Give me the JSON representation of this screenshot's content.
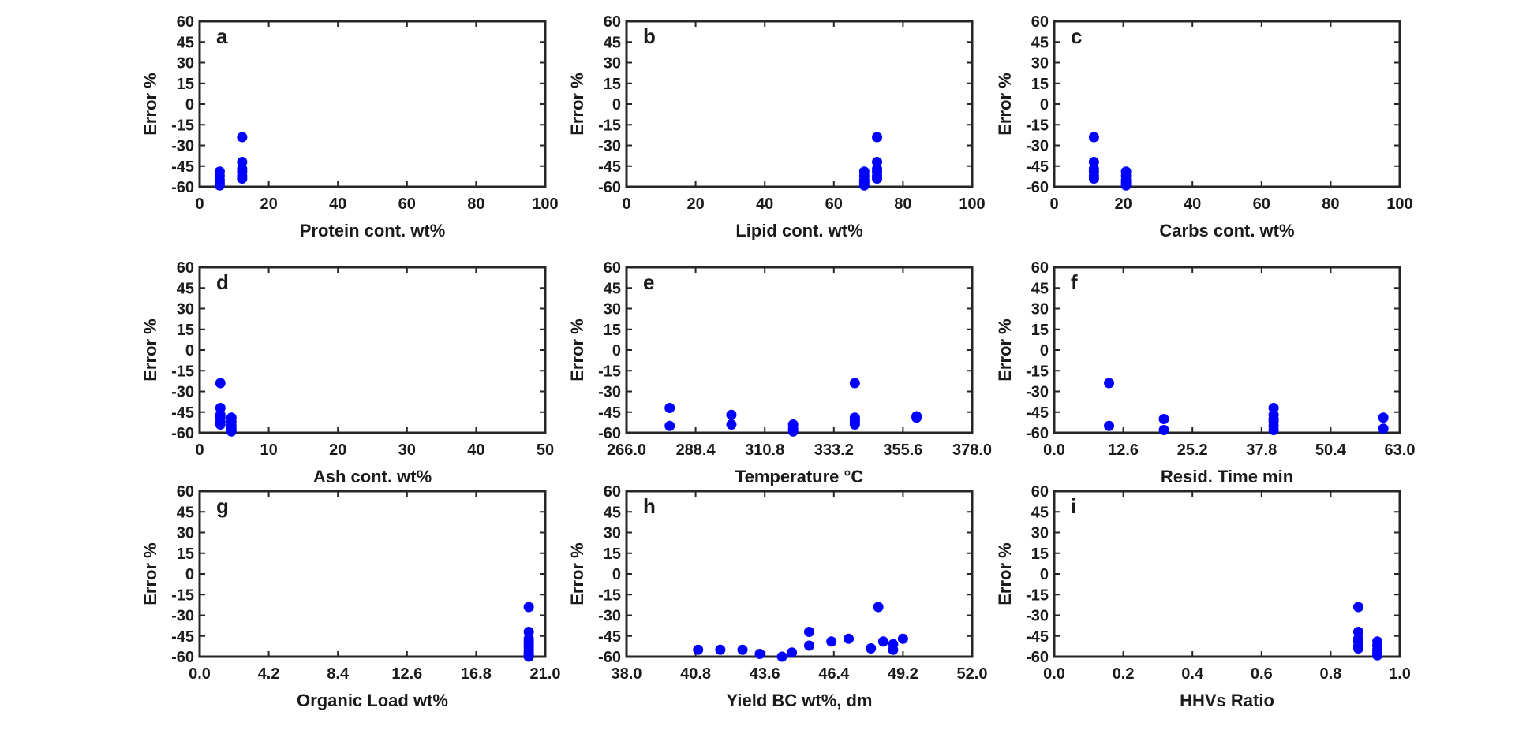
{
  "chart_data": [
    {
      "type": "scatter",
      "panel_label": "a",
      "xlabel": "Protein cont. wt%",
      "ylabel": "Error  %",
      "xlim": [
        0,
        100
      ],
      "ylim": [
        -60,
        60
      ],
      "xticks": [
        "0",
        "20",
        "40",
        "60",
        "80",
        "100"
      ],
      "yticks": [
        "60",
        "45",
        "30",
        "15",
        "0",
        "-15",
        "-30",
        "-45",
        "-60"
      ],
      "marker_color": "#0000ff",
      "x": [
        5.8,
        5.8,
        5.8,
        5.8,
        5.8,
        12.3,
        12.3,
        12.3,
        12.3,
        12.3,
        12.3
      ],
      "y": [
        -49,
        -52,
        -55,
        -57,
        -59,
        -24,
        -42,
        -47,
        -49,
        -52,
        -54
      ]
    },
    {
      "type": "scatter",
      "panel_label": "b",
      "xlabel": "Lipid cont. wt%",
      "ylabel": "Error  %",
      "xlim": [
        0,
        100
      ],
      "ylim": [
        -60,
        60
      ],
      "xticks": [
        "0",
        "20",
        "40",
        "60",
        "80",
        "100"
      ],
      "yticks": [
        "60",
        "45",
        "30",
        "15",
        "0",
        "-15",
        "-30",
        "-45",
        "-60"
      ],
      "marker_color": "#0000ff",
      "x": [
        68.8,
        68.8,
        68.8,
        68.8,
        68.8,
        72.5,
        72.5,
        72.5,
        72.5,
        72.5,
        72.5
      ],
      "y": [
        -49,
        -52,
        -55,
        -57,
        -59,
        -24,
        -42,
        -47,
        -49,
        -52,
        -54
      ]
    },
    {
      "type": "scatter",
      "panel_label": "c",
      "xlabel": "Carbs cont. wt%",
      "ylabel": "Error  %",
      "xlim": [
        0,
        100
      ],
      "ylim": [
        -60,
        60
      ],
      "xticks": [
        "0",
        "20",
        "40",
        "60",
        "80",
        "100"
      ],
      "yticks": [
        "60",
        "45",
        "30",
        "15",
        "0",
        "-15",
        "-30",
        "-45",
        "-60"
      ],
      "marker_color": "#0000ff",
      "x": [
        11.5,
        11.5,
        11.5,
        11.5,
        11.5,
        11.5,
        20.8,
        20.8,
        20.8,
        20.8,
        20.8
      ],
      "y": [
        -24,
        -42,
        -47,
        -49,
        -52,
        -54,
        -49,
        -52,
        -55,
        -57,
        -59
      ]
    },
    {
      "type": "scatter",
      "panel_label": "d",
      "xlabel": "Ash cont. wt%",
      "ylabel": "Error  %",
      "xlim": [
        0,
        50
      ],
      "ylim": [
        -60,
        60
      ],
      "xticks": [
        "0",
        "10",
        "20",
        "30",
        "40",
        "50"
      ],
      "yticks": [
        "60",
        "45",
        "30",
        "15",
        "0",
        "-15",
        "-30",
        "-45",
        "-60"
      ],
      "marker_color": "#0000ff",
      "x": [
        3.0,
        3.0,
        3.0,
        3.0,
        3.0,
        3.0,
        4.6,
        4.6,
        4.6,
        4.6,
        4.6
      ],
      "y": [
        -24,
        -42,
        -47,
        -49,
        -52,
        -54,
        -49,
        -52,
        -55,
        -57,
        -59
      ]
    },
    {
      "type": "scatter",
      "panel_label": "e",
      "xlabel": "Temperature  °C",
      "ylabel": "Error  %",
      "xlim": [
        266,
        378
      ],
      "ylim": [
        -60,
        60
      ],
      "xticks": [
        "266.0",
        "288.4",
        "310.8",
        "333.2",
        "355.6",
        "378.0"
      ],
      "yticks": [
        "60",
        "45",
        "30",
        "15",
        "0",
        "-15",
        "-30",
        "-45",
        "-60"
      ],
      "marker_color": "#0000ff",
      "x": [
        280,
        280,
        300,
        300,
        320,
        320,
        320,
        340,
        340,
        340,
        340,
        340,
        360,
        360
      ],
      "y": [
        -42,
        -55,
        -47,
        -54,
        -54,
        -57,
        -59,
        -24,
        -49,
        -52,
        -54,
        -51,
        -48,
        -49
      ]
    },
    {
      "type": "scatter",
      "panel_label": "f",
      "xlabel": "Resid. Time  min",
      "ylabel": "Error  %",
      "xlim": [
        0,
        63
      ],
      "ylim": [
        -60,
        60
      ],
      "xticks": [
        "0.0",
        "12.6",
        "25.2",
        "37.8",
        "50.4",
        "63.0"
      ],
      "yticks": [
        "60",
        "45",
        "30",
        "15",
        "0",
        "-15",
        "-30",
        "-45",
        "-60"
      ],
      "marker_color": "#0000ff",
      "x": [
        10,
        10,
        20,
        20,
        40,
        40,
        40,
        40,
        40,
        40,
        60,
        60
      ],
      "y": [
        -24,
        -55,
        -50,
        -58,
        -42,
        -47,
        -50,
        -52,
        -55,
        -58,
        -49,
        -57
      ]
    },
    {
      "type": "scatter",
      "panel_label": "g",
      "xlabel": "Organic Load  wt%",
      "ylabel": "Error  %",
      "xlim": [
        0,
        21
      ],
      "ylim": [
        -60,
        60
      ],
      "xticks": [
        "0.0",
        "4.2",
        "8.4",
        "12.6",
        "16.8",
        "21.0"
      ],
      "yticks": [
        "60",
        "45",
        "30",
        "15",
        "0",
        "-15",
        "-30",
        "-45",
        "-60"
      ],
      "marker_color": "#0000ff",
      "x": [
        20,
        20,
        20,
        20,
        20,
        20,
        20,
        20,
        20,
        20,
        20
      ],
      "y": [
        -24,
        -42,
        -47,
        -49,
        -51,
        -53,
        -55,
        -57,
        -58,
        -59,
        -60
      ]
    },
    {
      "type": "scatter",
      "panel_label": "h",
      "xlabel": "Yield BC wt%, dm",
      "ylabel": "Error  %",
      "xlim": [
        38,
        52
      ],
      "ylim": [
        -60,
        60
      ],
      "xticks": [
        "38.0",
        "40.8",
        "43.6",
        "46.4",
        "49.2",
        "52.0"
      ],
      "yticks": [
        "60",
        "45",
        "30",
        "15",
        "0",
        "-15",
        "-30",
        "-45",
        "-60"
      ],
      "marker_color": "#0000ff",
      "x": [
        40.9,
        41.8,
        42.7,
        43.4,
        44.3,
        44.7,
        45.4,
        45.4,
        46.3,
        47.0,
        47.9,
        48.2,
        48.4,
        48.8,
        48.8,
        49.2
      ],
      "y": [
        -55,
        -55,
        -55,
        -58,
        -60,
        -57,
        -42,
        -52,
        -49,
        -47,
        -54,
        -24,
        -49,
        -51,
        -55,
        -47
      ]
    },
    {
      "type": "scatter",
      "panel_label": "i",
      "xlabel": "HHVs Ratio",
      "ylabel": "Error  %",
      "xlim": [
        0,
        1
      ],
      "ylim": [
        -60,
        60
      ],
      "xticks": [
        "0.0",
        "0.2",
        "0.4",
        "0.6",
        "0.8",
        "1.0"
      ],
      "yticks": [
        "60",
        "45",
        "30",
        "15",
        "0",
        "-15",
        "-30",
        "-45",
        "-60"
      ],
      "marker_color": "#0000ff",
      "x": [
        0.88,
        0.88,
        0.88,
        0.88,
        0.88,
        0.88,
        0.935,
        0.935,
        0.935,
        0.935,
        0.935
      ],
      "y": [
        -24,
        -42,
        -47,
        -49,
        -52,
        -54,
        -49,
        -52,
        -55,
        -57,
        -59
      ]
    }
  ]
}
